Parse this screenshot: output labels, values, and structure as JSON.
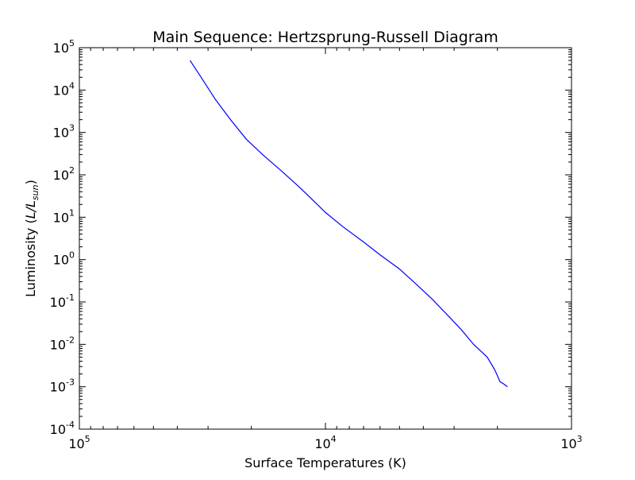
{
  "chart_data": {
    "type": "line",
    "title": "Main Sequence: Hertzsprung-Russell Diagram",
    "xlabel": "Surface Temperatures (K)",
    "ylabel": "Luminosity",
    "ylabel_math": "L/L",
    "ylabel_math_sub": "sun",
    "x_scale": "log",
    "y_scale": "log",
    "x_inverted": true,
    "xlim": [
      100000,
      1000
    ],
    "ylim": [
      0.0001,
      100000
    ],
    "grid": false,
    "legend": "none",
    "x_ticks": [
      {
        "value": 100000,
        "base": "10",
        "exp": "5"
      },
      {
        "value": 10000,
        "base": "10",
        "exp": "4"
      },
      {
        "value": 1000,
        "base": "10",
        "exp": "3"
      }
    ],
    "y_ticks": [
      {
        "value": 100000,
        "base": "10",
        "exp": "5"
      },
      {
        "value": 10000,
        "base": "10",
        "exp": "4"
      },
      {
        "value": 1000,
        "base": "10",
        "exp": "3"
      },
      {
        "value": 100,
        "base": "10",
        "exp": "2"
      },
      {
        "value": 10,
        "base": "10",
        "exp": "1"
      },
      {
        "value": 1,
        "base": "10",
        "exp": "0"
      },
      {
        "value": 0.1,
        "base": "10",
        "exp": "-1"
      },
      {
        "value": 0.01,
        "base": "10",
        "exp": "-2"
      },
      {
        "value": 0.001,
        "base": "10",
        "exp": "-3"
      },
      {
        "value": 0.0001,
        "base": "10",
        "exp": "-4"
      }
    ],
    "series": [
      {
        "color": "#0000ff",
        "x": [
          35500,
          32000,
          28000,
          24300,
          21000,
          18000,
          15000,
          12700,
          10000,
          8500,
          7000,
          6000,
          5000,
          4300,
          3700,
          3200,
          2800,
          2500,
          2200,
          2050,
          1950,
          1900,
          1820
        ],
        "y": [
          50000,
          20000,
          6000,
          2000,
          700,
          300,
          120,
          50,
          13,
          6,
          2.6,
          1.3,
          0.6,
          0.27,
          0.12,
          0.05,
          0.022,
          0.01,
          0.005,
          0.0025,
          0.0013,
          0.0012,
          0.001
        ]
      }
    ]
  }
}
